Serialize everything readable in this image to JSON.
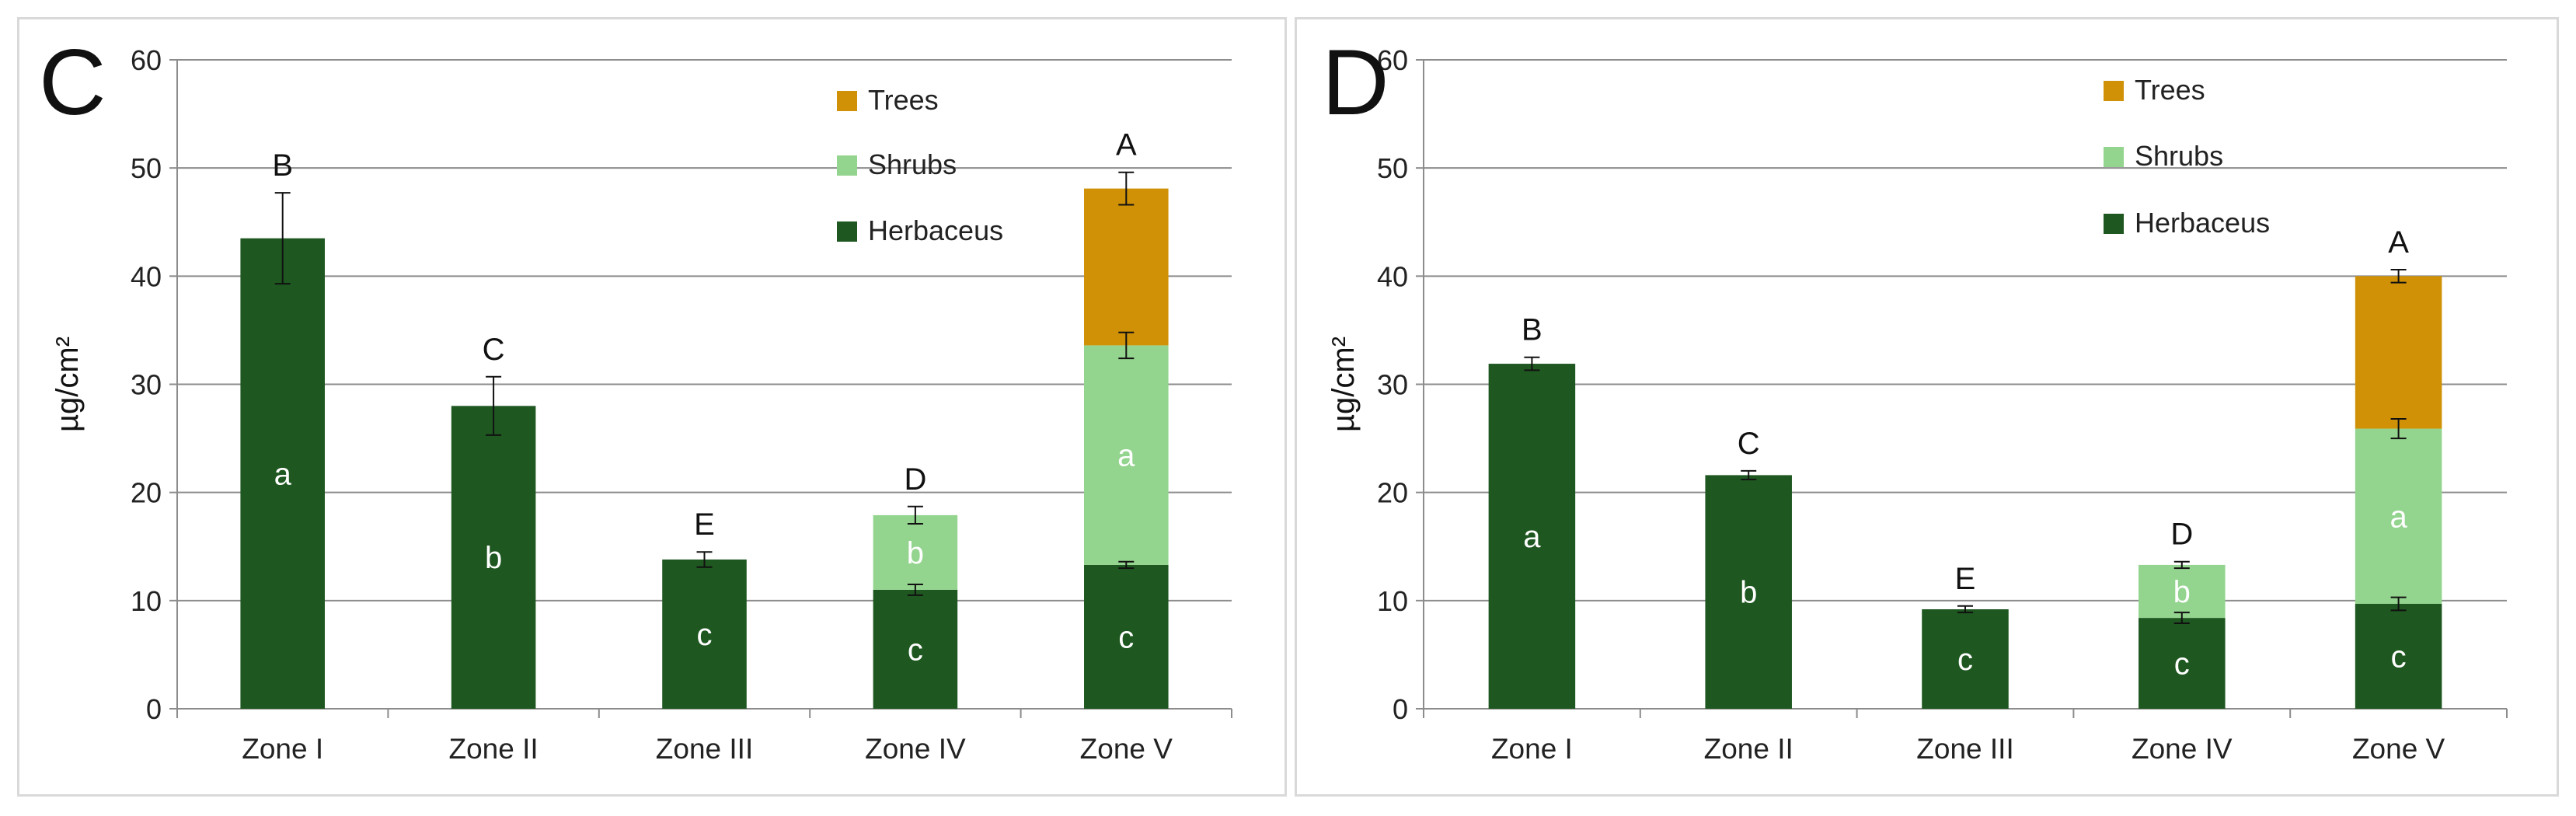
{
  "chart_data": [
    {
      "type": "bar",
      "stacked": true,
      "panel_label": "C",
      "ylabel": "µg/cm²",
      "xlabel": "",
      "ylim": [
        0,
        60
      ],
      "yticks": [
        0,
        10,
        20,
        30,
        40,
        50,
        60
      ],
      "grid": true,
      "legend_position": "top-right",
      "categories": [
        "Zone I",
        "Zone II",
        "Zone III",
        "Zone IV",
        "Zone V"
      ],
      "series": [
        {
          "name": "Herbaceus",
          "color": "#1e5720",
          "values": [
            43.5,
            28.0,
            13.8,
            11.0,
            13.3
          ],
          "err": [
            4.2,
            2.7,
            0.7,
            0.5,
            0.3
          ],
          "labels": [
            "a",
            "b",
            "c",
            "c",
            "c"
          ]
        },
        {
          "name": "Shrubs",
          "color": "#93d48e",
          "values": [
            0,
            0,
            0,
            6.9,
            20.3
          ],
          "err": [
            0,
            0,
            0,
            0.8,
            1.2
          ],
          "labels": [
            "",
            "",
            "",
            "b",
            "a"
          ]
        },
        {
          "name": "Trees",
          "color": "#d09106",
          "values": [
            0,
            0,
            0,
            0,
            14.5
          ],
          "err": [
            0,
            0,
            0,
            0,
            1.5
          ],
          "labels": [
            "",
            "",
            "",
            "",
            ""
          ]
        }
      ],
      "group_letters": [
        "B",
        "C",
        "E",
        "D",
        "A"
      ],
      "legend_order": [
        "Trees",
        "Shrubs",
        "Herbaceus"
      ]
    },
    {
      "type": "bar",
      "stacked": true,
      "panel_label": "D",
      "ylabel": "µg/cm²",
      "xlabel": "",
      "ylim": [
        0,
        60
      ],
      "yticks": [
        0,
        10,
        20,
        30,
        40,
        50,
        60
      ],
      "grid": true,
      "legend_position": "top-right",
      "categories": [
        "Zone I",
        "Zone II",
        "Zone III",
        "Zone IV",
        "Zone V"
      ],
      "series": [
        {
          "name": "Herbaceus",
          "color": "#1e5720",
          "values": [
            31.9,
            21.6,
            9.2,
            8.4,
            9.7
          ],
          "err": [
            0.6,
            0.4,
            0.3,
            0.5,
            0.6
          ],
          "labels": [
            "a",
            "b",
            "c",
            "c",
            "c"
          ]
        },
        {
          "name": "Shrubs",
          "color": "#93d48e",
          "values": [
            0,
            0,
            0,
            4.9,
            16.2
          ],
          "err": [
            0,
            0,
            0,
            0.3,
            0.9
          ],
          "labels": [
            "",
            "",
            "",
            "b",
            "a"
          ]
        },
        {
          "name": "Trees",
          "color": "#d09106",
          "values": [
            0,
            0,
            0,
            0,
            14.1
          ],
          "err": [
            0,
            0,
            0,
            0,
            0.6
          ],
          "labels": [
            "",
            "",
            "",
            "",
            ""
          ]
        }
      ],
      "group_letters": [
        "B",
        "C",
        "E",
        "D",
        "A"
      ],
      "legend_order": [
        "Trees",
        "Shrubs",
        "Herbaceus"
      ]
    }
  ]
}
